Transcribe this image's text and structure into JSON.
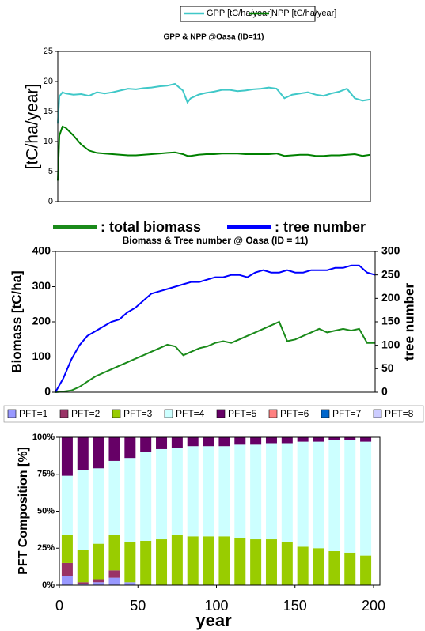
{
  "chart_data": [
    {
      "type": "line",
      "title": "GPP & NPP @Oasa (ID=11)",
      "ylabel": "[tC/ha/year]",
      "x": [
        0,
        1,
        3,
        5,
        10,
        15,
        20,
        25,
        30,
        35,
        40,
        45,
        50,
        55,
        60,
        65,
        70,
        75,
        80,
        83,
        85,
        90,
        95,
        100,
        105,
        110,
        115,
        120,
        125,
        130,
        135,
        140,
        145,
        150,
        155,
        160,
        165,
        170,
        175,
        180,
        185,
        190,
        195,
        200
      ],
      "series": [
        {
          "name": "GPP [tC/ha/year]",
          "color": "#40c8c8",
          "values": [
            13,
            17.5,
            18.2,
            18,
            17.8,
            17.9,
            17.6,
            18.2,
            18,
            18.2,
            18.5,
            18.8,
            18.7,
            18.9,
            19,
            19.2,
            19.3,
            19.6,
            18.5,
            16.5,
            17.2,
            17.8,
            18.1,
            18.3,
            18.6,
            18.6,
            18.4,
            18.5,
            18.7,
            18.8,
            19,
            18.8,
            17.2,
            17.8,
            18,
            18.2,
            17.8,
            17.6,
            18,
            18.3,
            18.8,
            17.2,
            16.8,
            17
          ]
        },
        {
          "name": "NPP [tC/ha/year]",
          "color": "#008000",
          "values": [
            3.5,
            11,
            12.5,
            12.3,
            11,
            9.5,
            8.5,
            8.1,
            8,
            7.9,
            7.8,
            7.7,
            7.7,
            7.8,
            7.9,
            8,
            8.1,
            8.2,
            7.9,
            7.6,
            7.6,
            7.8,
            7.9,
            7.9,
            8,
            8,
            8,
            7.9,
            7.9,
            7.9,
            7.9,
            8,
            7.6,
            7.7,
            7.8,
            7.8,
            7.6,
            7.6,
            7.7,
            7.7,
            7.8,
            7.9,
            7.6,
            7.8
          ]
        }
      ],
      "xlim": [
        0,
        200
      ],
      "ylim": [
        0,
        25
      ],
      "yticks": [
        0,
        5,
        10,
        15,
        20,
        25
      ]
    },
    {
      "type": "line",
      "title": "Biomass & Tree number @ Oasa (ID = 11)",
      "ylabel": "Biomass [tC/ha]",
      "y2label": "tree number",
      "x": [
        0,
        5,
        10,
        15,
        20,
        25,
        30,
        35,
        40,
        45,
        50,
        55,
        60,
        65,
        70,
        75,
        80,
        85,
        90,
        95,
        100,
        105,
        110,
        115,
        120,
        125,
        130,
        135,
        140,
        145,
        150,
        155,
        160,
        165,
        170,
        175,
        180,
        185,
        190,
        195,
        200
      ],
      "series": [
        {
          "name": ": total biomass",
          "color": "#1a8a1a",
          "values": [
            0,
            2,
            5,
            15,
            30,
            45,
            55,
            65,
            75,
            85,
            95,
            105,
            115,
            125,
            135,
            130,
            105,
            115,
            125,
            130,
            140,
            145,
            140,
            150,
            160,
            170,
            180,
            190,
            200,
            145,
            150,
            160,
            170,
            180,
            170,
            175,
            180,
            175,
            180,
            140,
            140
          ]
        },
        {
          "name": ": tree number",
          "color": "#0000ff",
          "axis": "y2",
          "values": [
            0,
            30,
            70,
            100,
            120,
            130,
            140,
            150,
            155,
            170,
            180,
            195,
            210,
            215,
            220,
            225,
            230,
            235,
            235,
            240,
            245,
            245,
            250,
            250,
            245,
            255,
            260,
            255,
            255,
            260,
            255,
            255,
            260,
            260,
            260,
            265,
            265,
            270,
            270,
            255,
            250
          ]
        }
      ],
      "xlim": [
        0,
        200
      ],
      "ylim": [
        0,
        400
      ],
      "yticks": [
        0,
        100,
        200,
        300,
        400
      ],
      "y2lim": [
        0,
        300
      ],
      "y2ticks": [
        0,
        50,
        100,
        150,
        200,
        250,
        300
      ]
    },
    {
      "type": "bar",
      "stacked": true,
      "ylabel": "PFT Composition [%]",
      "xlabel": "year",
      "x": [
        5,
        15,
        25,
        35,
        45,
        55,
        65,
        75,
        85,
        95,
        105,
        115,
        125,
        135,
        145,
        155,
        165,
        175,
        185,
        195
      ],
      "series": [
        {
          "name": "PFT=1",
          "color": "#9999ff",
          "values": [
            6,
            0.5,
            2,
            5,
            2,
            0,
            0,
            0,
            0,
            0,
            0,
            0,
            0,
            0,
            0,
            0,
            0,
            0,
            0,
            0
          ]
        },
        {
          "name": "PFT=2",
          "color": "#993366",
          "values": [
            9,
            1.5,
            2,
            5,
            0,
            0,
            0,
            0,
            0,
            0,
            0,
            0,
            0,
            0,
            0,
            0,
            0,
            0,
            0,
            0
          ]
        },
        {
          "name": "PFT=3",
          "color": "#99cc00",
          "values": [
            19,
            22,
            24,
            24,
            27,
            30,
            31,
            34,
            33,
            33,
            33,
            32,
            31,
            31,
            29,
            26,
            25,
            23,
            22,
            20
          ]
        },
        {
          "name": "PFT=4",
          "color": "#ccffff",
          "values": [
            40,
            54,
            51,
            50,
            57,
            60,
            61,
            59,
            61,
            61,
            61,
            63,
            64,
            65,
            67,
            71,
            72,
            75,
            76,
            77
          ]
        },
        {
          "name": "PFT=5",
          "color": "#660066",
          "values": [
            26,
            22,
            21,
            16,
            14,
            10,
            8,
            7,
            6,
            6,
            6,
            5,
            5,
            4,
            4,
            3,
            3,
            2,
            2,
            3
          ]
        },
        {
          "name": "PFT=6",
          "color": "#ff8080",
          "values": [
            0,
            0,
            0,
            0,
            0,
            0,
            0,
            0,
            0,
            0,
            0,
            0,
            0,
            0,
            0,
            0,
            0,
            0,
            0,
            0
          ]
        },
        {
          "name": "PFT=7",
          "color": "#0066cc",
          "values": [
            0,
            0,
            0,
            0,
            0,
            0,
            0,
            0,
            0,
            0,
            0,
            0,
            0,
            0,
            0,
            0,
            0,
            0,
            0,
            0
          ]
        },
        {
          "name": "PFT=8",
          "color": "#ccccff",
          "values": [
            0,
            0,
            0,
            0,
            0,
            0,
            0,
            0,
            0,
            0,
            0,
            0,
            0,
            0,
            0,
            0,
            0,
            0,
            0,
            0
          ]
        }
      ],
      "xlim": [
        0,
        200
      ],
      "xticks": [
        0,
        50,
        100,
        150,
        200
      ],
      "ylim": [
        0,
        100
      ],
      "yticks": [
        {
          "value": 0,
          "label": "0%"
        },
        {
          "value": 25,
          "label": "25%"
        },
        {
          "value": 50,
          "label": "50%"
        },
        {
          "value": 75,
          "label": "75%"
        },
        {
          "value": 100,
          "label": "100%"
        }
      ]
    }
  ]
}
